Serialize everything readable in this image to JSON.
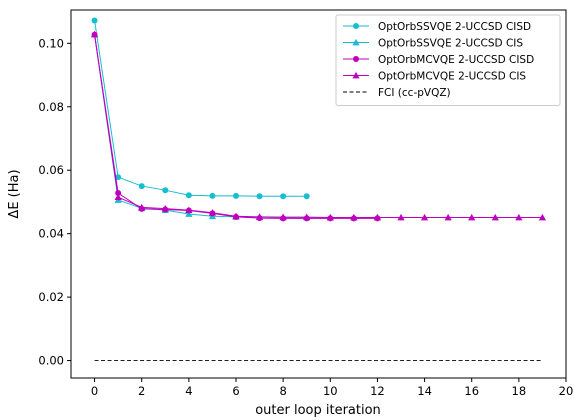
{
  "chart_data": {
    "type": "line",
    "xlabel": "outer loop iteration",
    "ylabel": "ΔE (Ha)",
    "xlim": [
      -1,
      20
    ],
    "ylim": [
      -0.0055,
      0.1105
    ],
    "xticks": [
      0,
      2,
      4,
      6,
      8,
      10,
      12,
      14,
      16,
      18,
      20
    ],
    "xtick_labels": [
      "0",
      "2",
      "4",
      "6",
      "8",
      "10",
      "12",
      "14",
      "16",
      "18",
      "20"
    ],
    "yticks": [
      0.0,
      0.02,
      0.04,
      0.06,
      0.08,
      0.1
    ],
    "ytick_labels": [
      "0.00",
      "0.02",
      "0.04",
      "0.06",
      "0.08",
      "0.10"
    ],
    "grid": false,
    "legend_position": "top-right",
    "series": [
      {
        "name": "OptOrbSSVQE 2-UCCSD CISD",
        "color": "#17becf",
        "marker": "circle",
        "x": [
          0,
          1,
          2,
          3,
          4,
          5,
          6,
          7,
          8,
          9
        ],
        "y": [
          0.1072,
          0.0578,
          0.055,
          0.0537,
          0.0521,
          0.0519,
          0.0519,
          0.0518,
          0.0518,
          0.0518
        ]
      },
      {
        "name": "OptOrbSSVQE 2-UCCSD CIS",
        "color": "#17becf",
        "marker": "triangle",
        "x": [
          0,
          1,
          2,
          3,
          4,
          5,
          6,
          7,
          8,
          9,
          10,
          11,
          12
        ],
        "y": [
          0.1028,
          0.0506,
          0.048,
          0.0474,
          0.0462,
          0.0455,
          0.0453,
          0.0452,
          0.0451,
          0.0451,
          0.0451,
          0.0451,
          0.0451
        ]
      },
      {
        "name": "OptOrbMCVQE 2-UCCSD CISD",
        "color": "#bf00bf",
        "marker": "circle",
        "x": [
          0,
          1,
          2,
          3,
          4,
          5,
          6,
          7,
          8,
          9,
          10,
          11,
          12
        ],
        "y": [
          0.1027,
          0.0528,
          0.0478,
          0.0476,
          0.0473,
          0.0464,
          0.0453,
          0.0449,
          0.0448,
          0.0448,
          0.0448,
          0.0448,
          0.0448
        ]
      },
      {
        "name": "OptOrbMCVQE 2-UCCSD CIS",
        "color": "#bf00bf",
        "marker": "triangle",
        "x": [
          0,
          1,
          2,
          3,
          4,
          5,
          6,
          7,
          8,
          9,
          10,
          11,
          12,
          13,
          14,
          15,
          16,
          17,
          18,
          19
        ],
        "y": [
          0.1028,
          0.0515,
          0.0483,
          0.0479,
          0.0474,
          0.0466,
          0.0455,
          0.0453,
          0.0452,
          0.0452,
          0.0451,
          0.0451,
          0.0451,
          0.0451,
          0.0451,
          0.0451,
          0.0451,
          0.0451,
          0.0451,
          0.0451
        ]
      },
      {
        "name": "FCI (cc-pVQZ)",
        "color": "#000000",
        "marker": "none",
        "dashed": true,
        "x": [
          0,
          19
        ],
        "y": [
          0.0,
          0.0
        ]
      }
    ]
  }
}
